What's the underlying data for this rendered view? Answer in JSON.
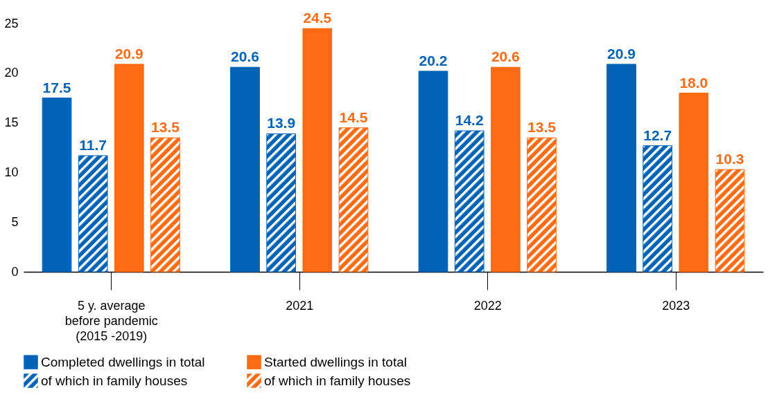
{
  "chart_data": {
    "type": "bar",
    "categories": [
      "5 y. average before pandemic (2015 -2019)",
      "2021",
      "2022",
      "2023"
    ],
    "series": [
      {
        "name": "Completed dwellings in total",
        "color": "#0063b6",
        "values": [
          17.5,
          20.6,
          20.2,
          20.9
        ],
        "value_labels": [
          "17.5",
          "20.6",
          "20.2",
          "20.9"
        ]
      },
      {
        "name": "of which in family houses",
        "color": "#0063b6",
        "values": [
          11.7,
          13.9,
          14.2,
          12.7
        ],
        "value_labels": [
          "11.7",
          "13.9",
          "14.2",
          "12.7"
        ]
      },
      {
        "name": "Started dwellings in total",
        "color": "#ff6b12",
        "values": [
          20.9,
          24.5,
          20.6,
          18.0
        ],
        "value_labels": [
          "20.9",
          "24.5",
          "20.6",
          "18.0"
        ]
      },
      {
        "name": "of which in family houses",
        "color": "#ff6b12",
        "values": [
          13.5,
          14.5,
          13.5,
          10.3
        ],
        "value_labels": [
          "13.5",
          "14.5",
          "13.5",
          "10.3"
        ]
      }
    ],
    "ylim": [
      0,
      25
    ],
    "yticks": [
      0,
      5,
      10,
      15,
      20,
      25
    ],
    "grid": false,
    "legend": "bottom"
  }
}
